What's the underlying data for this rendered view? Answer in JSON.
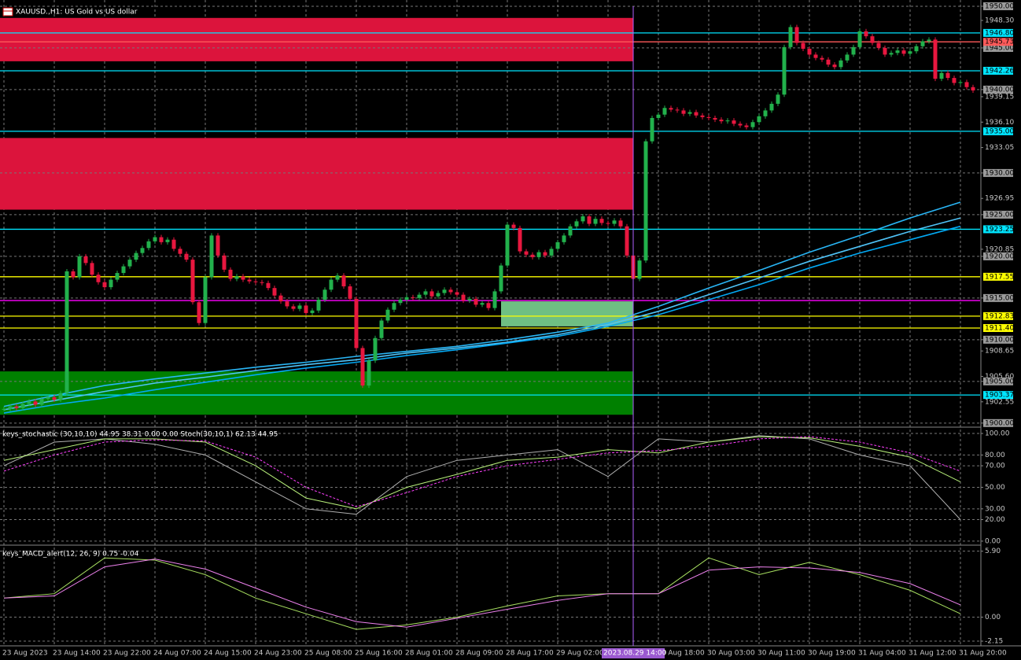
{
  "chart_data": [
    {
      "type": "candlestick",
      "title": "XAUUSD.,H1:  US Gold vs US dollar",
      "categories": [
        "23 Aug 2023",
        "23 Aug 14:00",
        "23 Aug 22:00",
        "24 Aug 07:00",
        "24 Aug 15:00",
        "24 Aug 23:00",
        "25 Aug 08:00",
        "25 Aug 16:00",
        "28 Aug 01:00",
        "28 Aug 09:00",
        "28 Aug 17:00",
        "29 Aug 02:00",
        null,
        "29 Aug 18:00",
        "30 Aug 03:00",
        "30 Aug 11:00",
        "30 Aug 19:00",
        "31 Aug 04:00",
        "31 Aug 12:00",
        "31 Aug 20:00"
      ],
      "cursor_label": "2023.08.29 14:00",
      "up_color": "#22b14c",
      "down_color": "#e8173f",
      "close": [
        1901.7,
        1902.0,
        1901.8,
        1902.3,
        1902.6,
        1902.2,
        1902.9,
        1903.1,
        1902.8,
        1903.6,
        1918.2,
        1917.5,
        1920.0,
        1919.2,
        1917.8,
        1916.9,
        1916.3,
        1917.2,
        1918.0,
        1918.8,
        1919.6,
        1920.4,
        1921.0,
        1921.8,
        1922.3,
        1921.7,
        1922.0,
        1920.9,
        1920.3,
        1919.6,
        1914.5,
        1912.0,
        1917.5,
        1922.5,
        1920.1,
        1918.4,
        1917.3,
        1917.6,
        1917.2,
        1917.0,
        1916.9,
        1916.8,
        1916.2,
        1915.3,
        1914.6,
        1914.0,
        1913.7,
        1914.1,
        1913.2,
        1913.5,
        1914.8,
        1916.0,
        1917.2,
        1917.7,
        1916.4,
        1914.9,
        1909.0,
        1904.5,
        1907.5,
        1910.2,
        1912.3,
        1913.6,
        1914.4,
        1914.8,
        1915.1,
        1915.0,
        1915.4,
        1915.8,
        1915.2,
        1915.6,
        1916.0,
        1915.7,
        1915.4,
        1914.7,
        1914.9,
        1914.2,
        1914.4,
        1913.8,
        1915.8,
        1918.9,
        1923.8,
        1923.4,
        1920.6,
        1920.2,
        1919.9,
        1920.5,
        1920.1,
        1920.9,
        1921.7,
        1922.5,
        1923.6,
        1924.2,
        1924.8,
        1923.9,
        1924.5,
        1924.0,
        1923.9,
        1924.3,
        1923.6,
        1920.1,
        1917.3,
        1919.5,
        1933.8,
        1936.6,
        1937.0,
        1937.8,
        1937.6,
        1937.5,
        1937.1,
        1937.3,
        1936.9,
        1936.7,
        1936.6,
        1936.4,
        1936.2,
        1936.3,
        1935.9,
        1935.7,
        1935.5,
        1936.1,
        1936.8,
        1937.5,
        1938.3,
        1939.4,
        1945.1,
        1947.5,
        1945.6,
        1944.9,
        1944.2,
        1943.8,
        1943.6,
        1943.0,
        1942.7,
        1943.5,
        1944.2,
        1945.1,
        1947.0,
        1946.4,
        1945.6,
        1945.0,
        1944.2,
        1944.4,
        1944.7,
        1944.3,
        1944.6,
        1945.2,
        1945.8,
        1946.0,
        1941.3,
        1942.0,
        1941.4,
        1940.8,
        1940.9,
        1940.3,
        1939.9
      ],
      "series": [
        {
          "color": "#29b6f6",
          "values": [
            1902.0,
            1903.3,
            1904.5,
            1905.3,
            1906.0,
            1906.7,
            1907.3,
            1908.0,
            1908.6,
            1909.2,
            1910.0,
            1910.9,
            1912.0,
            1914.0,
            1916.2,
            1918.3,
            1920.5,
            1922.5,
            1924.6,
            1926.5
          ]
        },
        {
          "color": "#4fc3f7",
          "values": [
            1901.6,
            1902.7,
            1903.8,
            1904.8,
            1905.5,
            1906.3,
            1907.0,
            1907.6,
            1908.4,
            1909.0,
            1909.7,
            1910.6,
            1911.8,
            1913.4,
            1915.4,
            1917.4,
            1919.4,
            1921.2,
            1923.0,
            1924.6
          ]
        },
        {
          "color": "#03a9f4",
          "values": [
            1901.2,
            1902.2,
            1903.0,
            1904.0,
            1904.9,
            1905.8,
            1906.6,
            1907.3,
            1908.1,
            1908.8,
            1909.6,
            1910.4,
            1911.6,
            1913.0,
            1914.8,
            1916.6,
            1918.6,
            1920.4,
            1922.0,
            1923.6
          ]
        }
      ],
      "zones": [
        {
          "top": 1948.6,
          "bottom": 1943.4,
          "color": "#dc143c"
        },
        {
          "top": 1934.2,
          "bottom": 1925.6,
          "color": "#dc143c"
        },
        {
          "top": 1906.2,
          "bottom": 1901.0,
          "color": "#008000"
        },
        {
          "top": 1914.6,
          "bottom": 1911.6,
          "color": "#6fbf83"
        }
      ],
      "levels": [
        {
          "value": 1946.8,
          "label": "1946.80",
          "color": "#00e5ff"
        },
        {
          "value": 1945.73,
          "label": "1945.73",
          "color": "#ff5a5a"
        },
        {
          "value": 1942.26,
          "label": "1942.26",
          "color": "#00e5ff"
        },
        {
          "value": 1935.0,
          "label": "1935.00",
          "color": "#00e5ff"
        },
        {
          "value": 1923.25,
          "label": "1923.25",
          "color": "#00e5ff"
        },
        {
          "value": 1917.55,
          "label": "1917.55",
          "color": "#ffff00"
        },
        {
          "value": 1914.7,
          "color": "#ff00ff"
        },
        {
          "value": 1912.83,
          "label": "1912.83",
          "color": "#ffff00"
        },
        {
          "value": 1911.4,
          "label": "1911.40",
          "color": "#ffff00"
        },
        {
          "value": 1903.37,
          "label": "1903.37",
          "color": "#00e5ff"
        }
      ],
      "ylim": [
        1899.7,
        1950.75
      ],
      "yticks": [
        {
          "value": 1950,
          "label": "1950.00"
        },
        {
          "value": 1948.3,
          "label": "1948.30"
        },
        {
          "value": 1945,
          "label": "1945.00"
        },
        {
          "value": 1940,
          "label": "1940.00"
        },
        {
          "value": 1939.15,
          "label": "1939.15"
        },
        {
          "value": 1936.1,
          "label": "1936.10"
        },
        {
          "value": 1933.05,
          "label": "1933.05"
        },
        {
          "value": 1930,
          "label": "1930.00"
        },
        {
          "value": 1926.95,
          "label": "1926.95"
        },
        {
          "value": 1925,
          "label": "1925.00"
        },
        {
          "value": 1920.85,
          "label": "1920.85"
        },
        {
          "value": 1920,
          "label": "1920.00"
        },
        {
          "value": 1915,
          "label": "1915.00"
        },
        {
          "value": 1910,
          "label": "1910.00"
        },
        {
          "value": 1908.65,
          "label": "1908.65"
        },
        {
          "value": 1905.6,
          "label": "1905.60"
        },
        {
          "value": 1905,
          "label": "1905.00"
        },
        {
          "value": 1902.55,
          "label": "1902.55"
        },
        {
          "value": 1900,
          "label": "1900.00"
        }
      ],
      "grid": true
    },
    {
      "type": "line",
      "title": "keys_stochastic (30,10,10) 44.95 38.31 0.00 0.00 Stoch(30,10,1) 62.13 44.95",
      "series": [
        {
          "color": "#b0b0b0",
          "values": [
            70,
            92,
            95,
            90,
            80,
            55,
            30,
            25,
            60,
            75,
            80,
            85,
            60,
            95,
            92,
            98,
            95,
            80,
            70,
            20
          ]
        },
        {
          "color": "#b8f07a",
          "values": [
            75,
            85,
            95,
            95,
            92,
            70,
            40,
            30,
            50,
            62,
            75,
            78,
            85,
            82,
            92,
            97,
            96,
            88,
            78,
            55
          ]
        },
        {
          "color": "#ff40ff",
          "dashed": true,
          "values": [
            65,
            80,
            92,
            94,
            93,
            78,
            50,
            32,
            45,
            60,
            70,
            76,
            82,
            84,
            88,
            95,
            97,
            92,
            82,
            65
          ]
        }
      ],
      "ylim": [
        -3,
        104.4
      ],
      "yticks": [
        {
          "value": 100,
          "label": "100.00"
        },
        {
          "value": 80,
          "label": "80.00"
        },
        {
          "value": 70,
          "label": "70.00"
        },
        {
          "value": 50,
          "label": "50.00"
        },
        {
          "value": 30,
          "label": "30.00"
        },
        {
          "value": 20,
          "label": "20.00"
        },
        {
          "value": 0,
          "label": "0.00"
        }
      ],
      "grid": true
    },
    {
      "type": "line",
      "title": "keys_MACD_alert(12, 26, 9) 0.75 -0.04",
      "series": [
        {
          "color": "#a8e060",
          "values": [
            1.7,
            2.1,
            5.3,
            5.1,
            3.8,
            1.7,
            0.3,
            -1.1,
            -0.7,
            0,
            1.0,
            1.9,
            2.1,
            2.1,
            5.3,
            3.8,
            4.9,
            3.8,
            2.4,
            0.3
          ]
        },
        {
          "color": "#ee82ee",
          "values": [
            1.7,
            1.9,
            4.5,
            5.2,
            4.3,
            2.6,
            0.9,
            -0.4,
            -0.9,
            -0.1,
            0.7,
            1.5,
            2.1,
            2.1,
            4.2,
            4.5,
            4.4,
            4.0,
            3.0,
            1.1
          ]
        }
      ],
      "ylim": [
        -2.5,
        6.3
      ],
      "yticks": [
        {
          "value": 5.9,
          "label": "5.90"
        },
        {
          "value": 0,
          "label": "0.00"
        },
        {
          "value": -2.15,
          "label": "-2.15"
        }
      ],
      "grid": true
    }
  ]
}
